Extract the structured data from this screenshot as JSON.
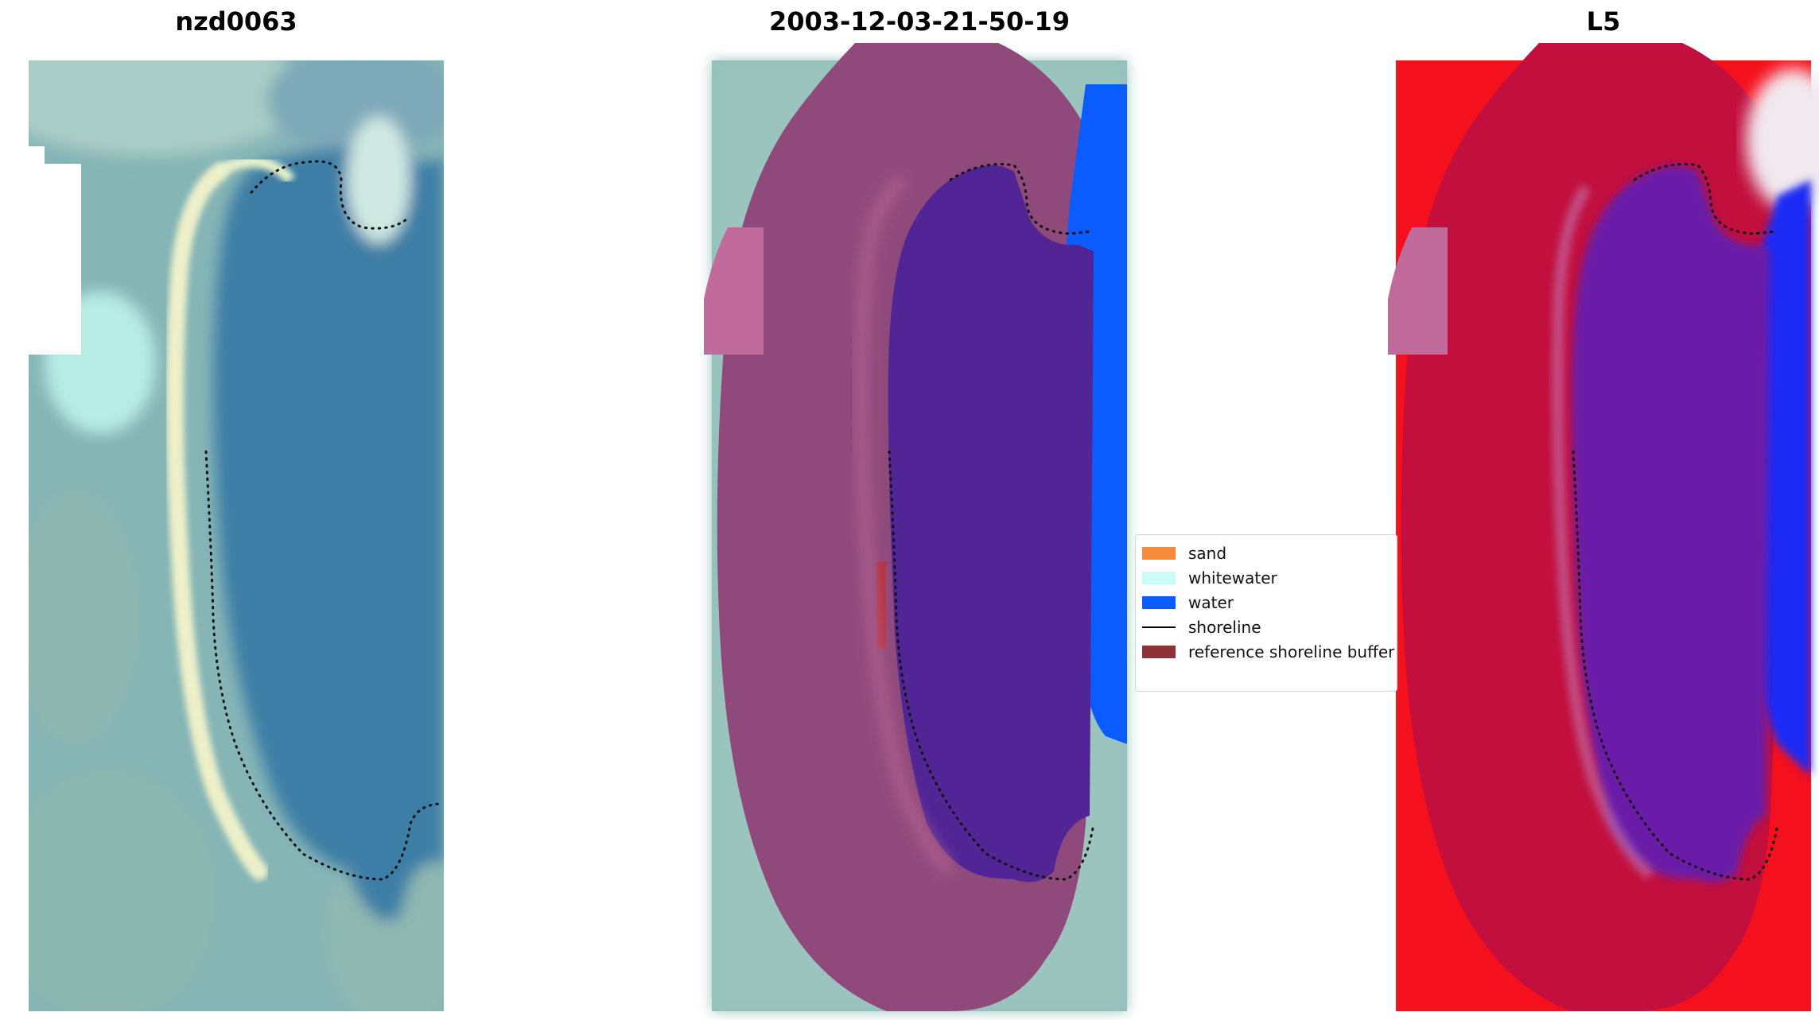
{
  "panels": [
    {
      "title": "nzd0063"
    },
    {
      "title": "2003-12-03-21-50-19"
    },
    {
      "title": "L5"
    }
  ],
  "legend": {
    "items": [
      {
        "label": "sand",
        "color": "#f58a3d"
      },
      {
        "label": "whitewater",
        "color": "#c9fbf7"
      },
      {
        "label": "water",
        "color": "#0a5cff"
      },
      {
        "label": "shoreline",
        "color": "#000000"
      },
      {
        "label": "reference shoreline buffer",
        "color": "#8e3037"
      }
    ]
  },
  "colors": {
    "ocean_rgb": "#7fb2b8",
    "lagoon_rgb": "#3b7fa8",
    "beach_rgb": "#f2f1c8",
    "buffer_overlay": "#8a3f78",
    "lagoon_class": "#512595",
    "water_class": "#0a5cff",
    "l5_red": "#c2103d",
    "l5_purple": "#6a1fa8",
    "l5_blue": "#1d2cf0"
  }
}
